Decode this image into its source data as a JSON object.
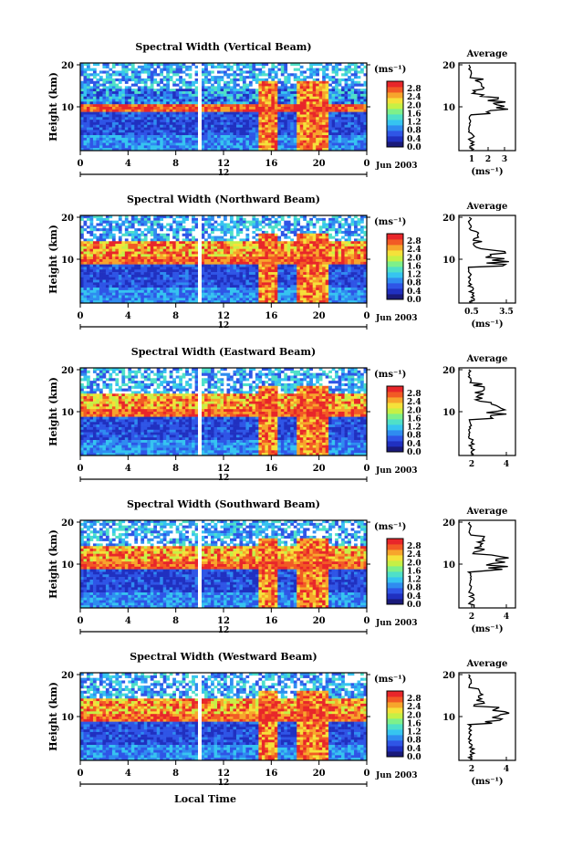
{
  "chart_data": [
    {
      "type": "heatmap",
      "title": "Spectral Width (Vertical Beam)",
      "ylabel": "Height (km)",
      "x_ticks": [
        "0",
        "4",
        "8",
        "12",
        "16",
        "20",
        "0"
      ],
      "y_ticks": [
        "20",
        "10"
      ],
      "date_labels": [
        "12",
        "Jun 2003"
      ],
      "colorbar": {
        "unit": "(ms⁻¹)",
        "ticks": [
          "2.8",
          "2.4",
          "2.0",
          "1.6",
          "1.2",
          "0.8",
          "0.4",
          "0.0"
        ]
      },
      "average": {
        "title": "Average",
        "xlabel": "(ms⁻¹)",
        "x_ticks": [
          "1",
          "2",
          "3"
        ],
        "y_ticks": [
          "20",
          "10"
        ]
      }
    },
    {
      "type": "heatmap",
      "title": "Spectral Width (Northward Beam)",
      "ylabel": "Height (km)",
      "x_ticks": [
        "0",
        "4",
        "8",
        "12",
        "16",
        "20",
        "0"
      ],
      "y_ticks": [
        "20",
        "10"
      ],
      "date_labels": [
        "12",
        "Jun 2003"
      ],
      "colorbar": {
        "unit": "(ms⁻¹)",
        "ticks": [
          "2.8",
          "2.4",
          "2.0",
          "1.6",
          "1.2",
          "0.8",
          "0.4",
          "0.0"
        ]
      },
      "average": {
        "title": "Average",
        "xlabel": "(ms⁻¹)",
        "x_ticks": [
          "0.5",
          "3.5"
        ],
        "y_ticks": [
          "20",
          "10"
        ]
      }
    },
    {
      "type": "heatmap",
      "title": "Spectral Width (Eastward Beam)",
      "ylabel": "Height (km)",
      "x_ticks": [
        "0",
        "4",
        "8",
        "12",
        "16",
        "20",
        "0"
      ],
      "y_ticks": [
        "20",
        "10"
      ],
      "date_labels": [
        "12",
        "Jun 2003"
      ],
      "colorbar": {
        "unit": "(ms⁻¹)",
        "ticks": [
          "2.8",
          "2.4",
          "2.0",
          "1.6",
          "1.2",
          "0.8",
          "0.4",
          "0.0"
        ]
      },
      "average": {
        "title": "Average",
        "xlabel": "",
        "x_ticks": [
          "2",
          "4"
        ],
        "y_ticks": [
          "20",
          "10"
        ]
      }
    },
    {
      "type": "heatmap",
      "title": "Spectral Width (Southward Beam)",
      "ylabel": "Height (km)",
      "x_ticks": [
        "0",
        "4",
        "8",
        "12",
        "16",
        "20",
        "0"
      ],
      "y_ticks": [
        "20",
        "10"
      ],
      "date_labels": [
        "12",
        "Jun 2003"
      ],
      "colorbar": {
        "unit": "(ms⁻¹)",
        "ticks": [
          "2.8",
          "2.4",
          "2.0",
          "1.6",
          "1.2",
          "0.8",
          "0.4",
          "0.0"
        ]
      },
      "average": {
        "title": "Average",
        "xlabel": "(ms⁻¹)",
        "x_ticks": [
          "2",
          "4"
        ],
        "y_ticks": [
          "20",
          "10"
        ]
      }
    },
    {
      "type": "heatmap",
      "title": "Spectral Width (Westward Beam)",
      "ylabel": "Height (km)",
      "x_ticks": [
        "0",
        "4",
        "8",
        "12",
        "16",
        "20",
        "0"
      ],
      "y_ticks": [
        "20",
        "10"
      ],
      "date_labels": [
        "12",
        "Jun 2003"
      ],
      "colorbar": {
        "unit": "(ms⁻¹)",
        "ticks": [
          "2.8",
          "2.4",
          "2.0",
          "1.6",
          "1.2",
          "0.8",
          "0.4",
          "0.0"
        ]
      },
      "average": {
        "title": "Average",
        "xlabel": "(ms⁻¹)",
        "x_ticks": [
          "2",
          "4"
        ],
        "y_ticks": [
          "20",
          "10"
        ]
      },
      "xlabel": "Local Time"
    }
  ],
  "colormap": [
    "#1a1a7a",
    "#2030c0",
    "#2f55e6",
    "#2f8cf0",
    "#36c4f0",
    "#4fe0c8",
    "#7ef08a",
    "#c6f046",
    "#f5e13a",
    "#f7a52c",
    "#f25a25",
    "#e8262a"
  ]
}
